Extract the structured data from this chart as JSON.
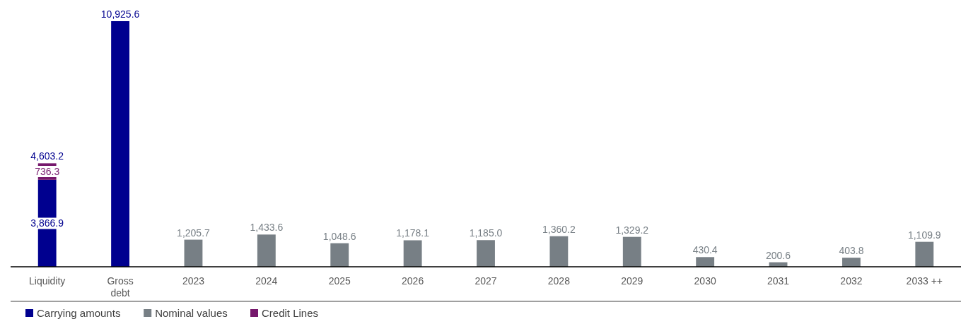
{
  "chart_data": {
    "type": "bar",
    "stacked": true,
    "categories": [
      "Liquidity",
      "Gross debt",
      "2023",
      "2024",
      "2025",
      "2026",
      "2027",
      "2028",
      "2029",
      "2030",
      "2031",
      "2032",
      "2033 ++"
    ],
    "series": [
      {
        "name": "Carrying amounts",
        "color": "#00008f",
        "values": [
          3866.9,
          10925.6,
          null,
          null,
          null,
          null,
          null,
          null,
          null,
          null,
          null,
          null,
          null
        ],
        "value_labels": [
          "3,866.9",
          "10,925.6",
          null,
          null,
          null,
          null,
          null,
          null,
          null,
          null,
          null,
          null,
          null
        ]
      },
      {
        "name": "Nominal values",
        "color": "#777f85",
        "values": [
          null,
          null,
          1205.7,
          1433.6,
          1048.6,
          1178.1,
          1185.0,
          1360.2,
          1329.2,
          430.4,
          200.6,
          403.8,
          1109.9
        ],
        "value_labels": [
          null,
          null,
          "1,205.7",
          "1,433.6",
          "1,048.6",
          "1,178.1",
          "1,185.0",
          "1,360.2",
          "1,329.2",
          "430.4",
          "200.6",
          "403.8",
          "1,109.9"
        ]
      },
      {
        "name": "Credit Lines",
        "color": "#76186c",
        "values": [
          736.3,
          null,
          null,
          null,
          null,
          null,
          null,
          null,
          null,
          null,
          null,
          null,
          null
        ],
        "value_labels": [
          "736.3",
          null,
          null,
          null,
          null,
          null,
          null,
          null,
          null,
          null,
          null,
          null,
          null
        ]
      }
    ],
    "totals": [
      "4,603.2",
      null,
      null,
      null,
      null,
      null,
      null,
      null,
      null,
      null,
      null,
      null,
      null
    ],
    "legend": "bottom left"
  }
}
